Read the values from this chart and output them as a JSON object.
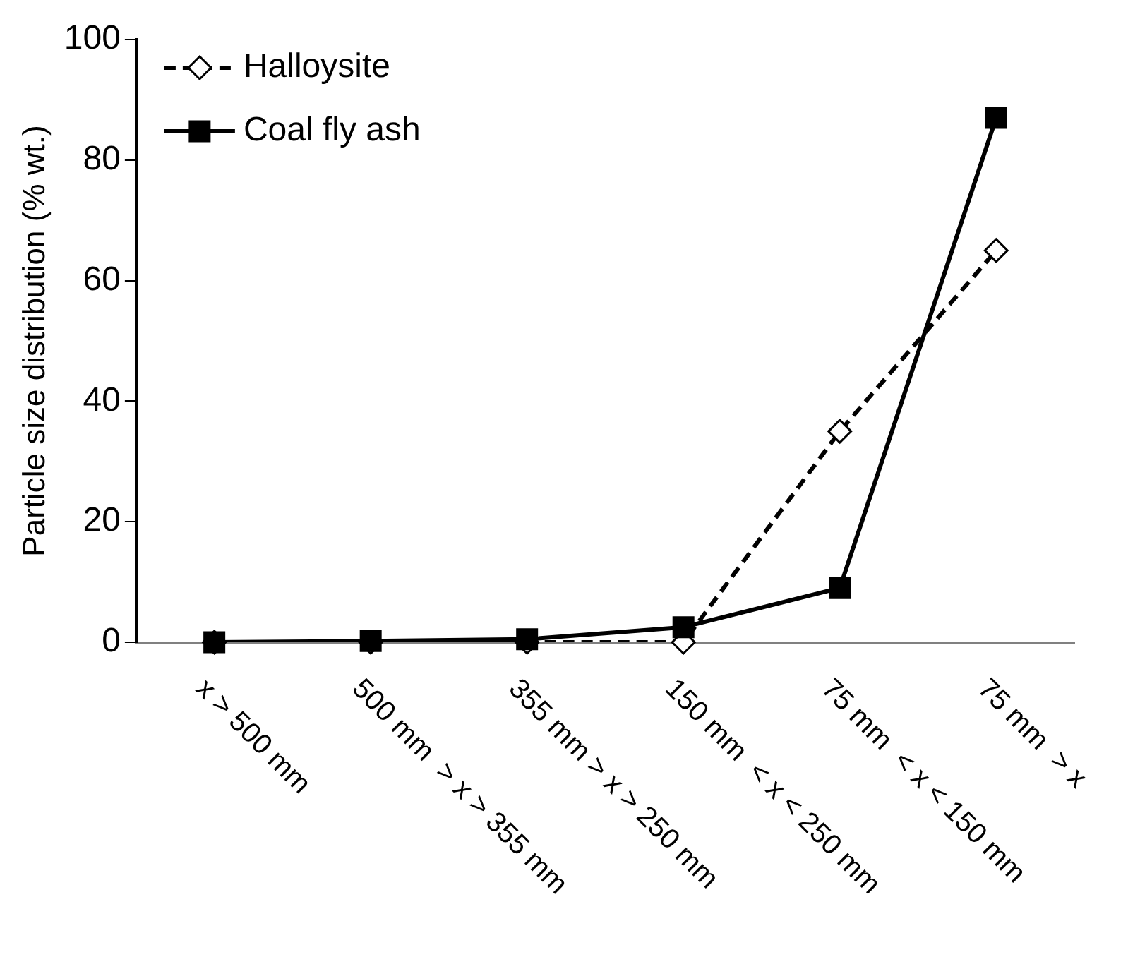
{
  "chart_data": {
    "type": "line",
    "ylabel": "Particle size distribution (% wt.)",
    "categories": [
      "x > 500 mm",
      "500 mm  > x > 355 mm",
      "355 mm > x > 250 mm",
      "150 mm  < x < 250 mm",
      "75 mm  < x < 150 mm",
      "75 mm  > x"
    ],
    "series": [
      {
        "name": "Halloysite",
        "color": "#000000",
        "values": [
          0,
          0,
          0,
          0,
          35,
          65
        ],
        "marker": "diamond",
        "line_style": "dashed"
      },
      {
        "name": "Coal fly ash",
        "color": "#000000",
        "values": [
          0,
          0.2,
          0.5,
          2.5,
          9,
          87
        ],
        "marker": "square",
        "line_style": "solid"
      }
    ],
    "ylim": [
      0,
      100
    ],
    "yticks": [
      0,
      20,
      40,
      60,
      80,
      100
    ],
    "grid": false,
    "legend": "top left"
  }
}
